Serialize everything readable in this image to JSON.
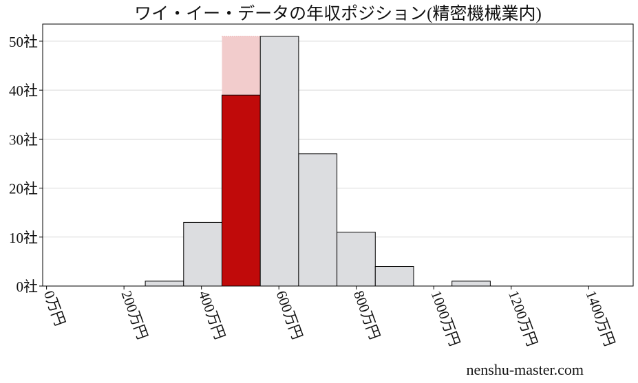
{
  "chart_data": {
    "type": "histogram",
    "title": "ワイ・イー・データの年収ポジション(精密機械業内)",
    "bins": [
      255,
      354,
      453,
      552,
      651,
      750,
      849,
      948,
      1047,
      1146
    ],
    "values": [
      1,
      13,
      39,
      51,
      27,
      11,
      4,
      0,
      1
    ],
    "color": "#dcdde0",
    "highlight": {
      "bin": 2,
      "color": "#c00a0a",
      "band_value": 51,
      "band_color": "#f2cccc"
    },
    "xlim": [
      -10,
      1515
    ],
    "ylim": [
      0,
      53.5
    ],
    "xticks": [
      {
        "value": 0,
        "label": "0万円"
      },
      {
        "value": 200,
        "label": "200万円"
      },
      {
        "value": 400,
        "label": "400万円"
      },
      {
        "value": 600,
        "label": "600万円"
      },
      {
        "value": 800,
        "label": "800万円"
      },
      {
        "value": 1000,
        "label": "1000万円"
      },
      {
        "value": 1200,
        "label": "1200万円"
      },
      {
        "value": 1400,
        "label": "1400万円"
      }
    ],
    "yticks": [
      {
        "value": 0,
        "label": "0社"
      },
      {
        "value": 10,
        "label": "10社"
      },
      {
        "value": 20,
        "label": "20社"
      },
      {
        "value": 30,
        "label": "30社"
      },
      {
        "value": 40,
        "label": "40社"
      },
      {
        "value": 50,
        "label": "50社"
      }
    ],
    "grid": true,
    "watermark": "nenshu-master.com"
  }
}
